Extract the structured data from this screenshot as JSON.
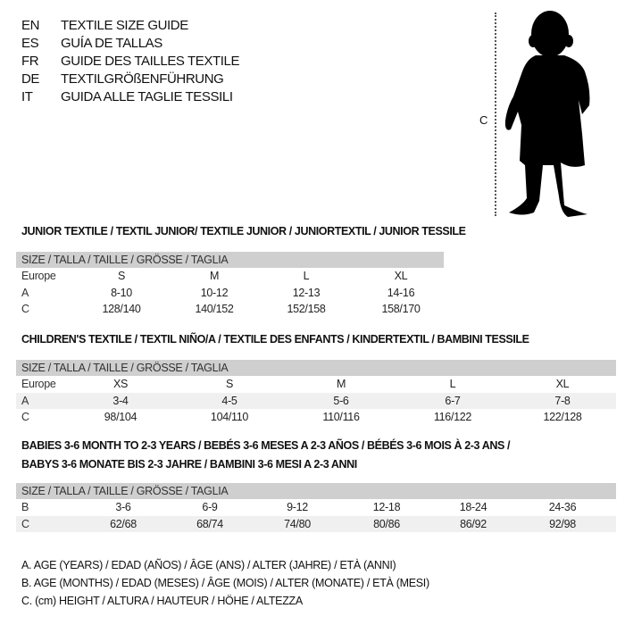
{
  "languages": [
    {
      "code": "EN",
      "text": "TEXTILE SIZE GUIDE"
    },
    {
      "code": "ES",
      "text": "GUÍA DE TALLAS"
    },
    {
      "code": "FR",
      "text": "GUIDE DES TAILLES TEXTILE"
    },
    {
      "code": "DE",
      "text": "TEXTILGRÖßENFÜHRUNG"
    },
    {
      "code": "IT",
      "text": "GUIDA ALLE TAGLIE TESSILI"
    }
  ],
  "figure": {
    "measure_label": "C",
    "icon": "child-silhouette-icon"
  },
  "junior": {
    "title": "JUNIOR TEXTILE / TEXTIL JUNIOR/ TEXTILE JUNIOR / JUNIORTEXTIL / JUNIOR TESSILE",
    "header": "SIZE / TALLA / TAILLE / GRÖSSE / TAGLIA",
    "rows": [
      {
        "label": "Europe",
        "cells": [
          "S",
          "M",
          "L",
          "XL"
        ]
      },
      {
        "label": "A",
        "cells": [
          "8-10",
          "10-12",
          "12-13",
          "14-16"
        ]
      },
      {
        "label": "C",
        "cells": [
          "128/140",
          "140/152",
          "152/158",
          "158/170"
        ]
      }
    ]
  },
  "children": {
    "title": "CHILDREN'S TEXTILE / TEXTIL NIÑO/A / TEXTILE DES ENFANTS / KINDERTEXTIL / BAMBINI TESSILE",
    "header": "SIZE / TALLA / TAILLE / GRÖSSE / TAGLIA",
    "rows": [
      {
        "label": "Europe",
        "cells": [
          "XS",
          "S",
          "M",
          "L",
          "XL"
        ]
      },
      {
        "label": "A",
        "cells": [
          "3-4",
          "4-5",
          "5-6",
          "6-7",
          "7-8"
        ]
      },
      {
        "label": "C",
        "cells": [
          "98/104",
          "104/110",
          "110/116",
          "116/122",
          "122/128"
        ]
      }
    ]
  },
  "babies": {
    "title_line1": "BABIES 3-6 MONTH TO 2-3 YEARS / BEBÉS 3-6 MESES A 2-3 AÑOS / BÉBÉS 3-6 MOIS À 2-3 ANS /",
    "title_line2": "BABYS 3-6 MONATE BIS 2-3 JAHRE / BAMBINI 3-6 MESI A 2-3 ANNI",
    "header": "SIZE / TALLA / TAILLE / GRÖSSE / TAGLIA",
    "rows": [
      {
        "label": "B",
        "cells": [
          "3-6",
          "6-9",
          "9-12",
          "12-18",
          "18-24",
          "24-36"
        ]
      },
      {
        "label": "C",
        "cells": [
          "62/68",
          "68/74",
          "74/80",
          "80/86",
          "86/92",
          "92/98"
        ]
      }
    ]
  },
  "legend": [
    "A. AGE (YEARS) / EDAD (AÑOS) / ÂGE (ANS) / ALTER (JAHRE) / ETÀ (ANNI)",
    "B. AGE (MONTHS) / EDAD (MESES) / ÂGE (MOIS) / ALTER (MONATE) / ETÀ (MESI)",
    "C. (cm) HEIGHT / ALTURA / HAUTEUR / HÖHE / ALTEZZA"
  ]
}
